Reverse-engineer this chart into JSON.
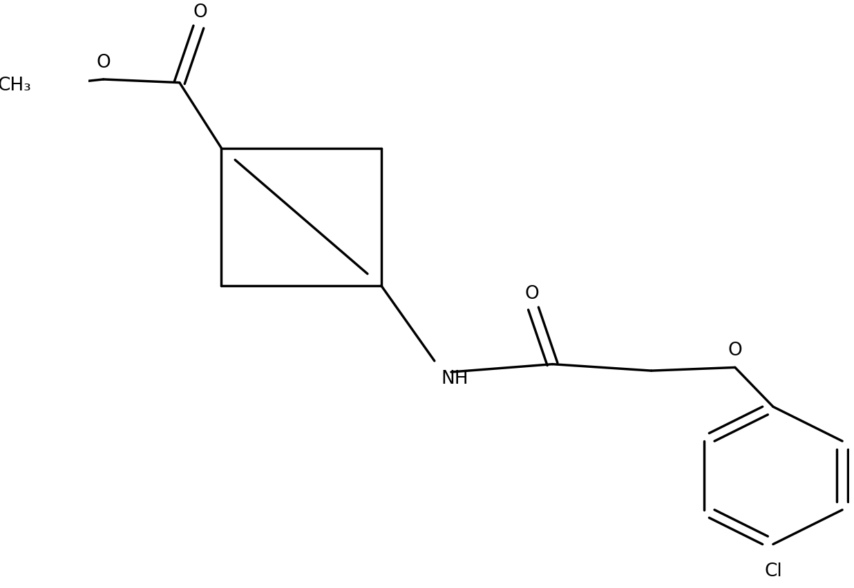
{
  "bg_color": "#ffffff",
  "line_color": "#000000",
  "line_width": 2.5,
  "font_size": 19,
  "figsize": [
    12.36,
    8.52
  ],
  "dpi": 100,
  "xlim": [
    0,
    10
  ],
  "ylim": [
    0,
    8.52
  ]
}
